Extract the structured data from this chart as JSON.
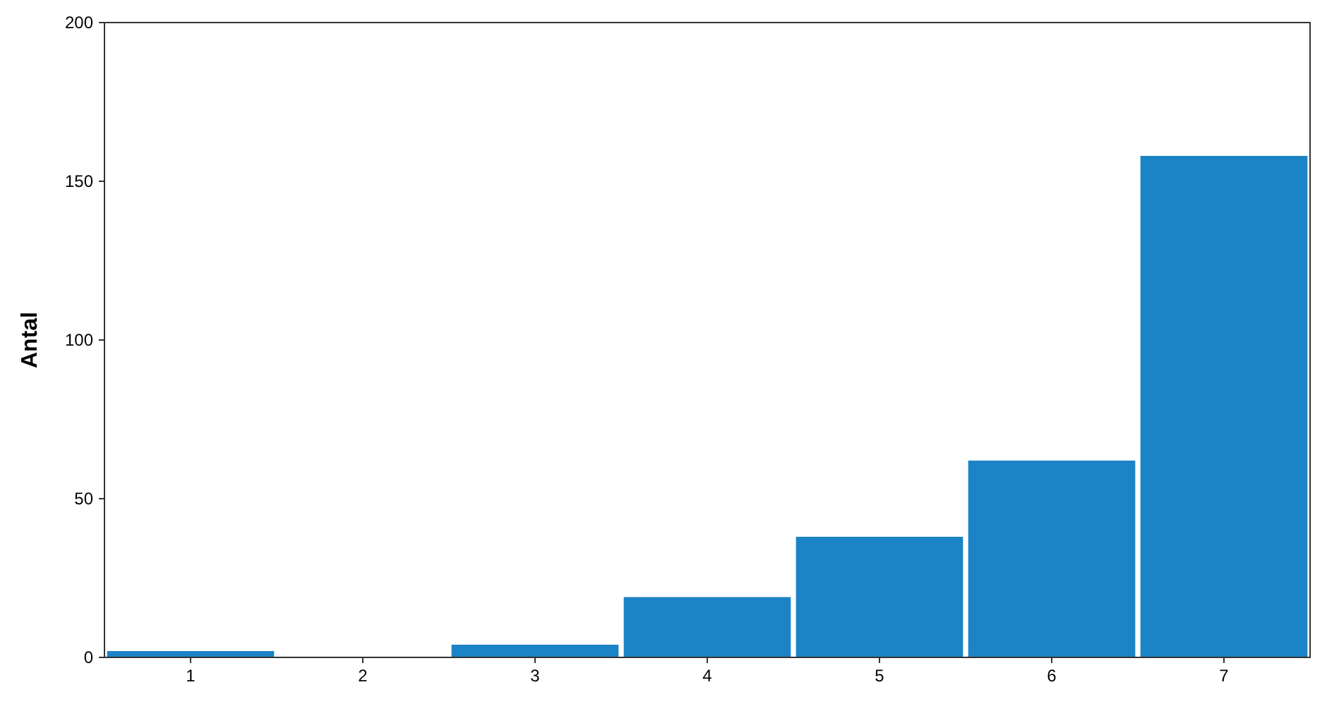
{
  "chart_data": {
    "type": "bar",
    "ylabel": "Antal",
    "categories": [
      "1",
      "2",
      "3",
      "4",
      "5",
      "6",
      "7"
    ],
    "values": [
      2,
      0,
      4,
      19,
      38,
      62,
      158
    ],
    "color": "#1c84c6",
    "ylim": [
      0,
      200
    ],
    "yticks": [
      0,
      50,
      100,
      150,
      200
    ],
    "grid": false
  }
}
